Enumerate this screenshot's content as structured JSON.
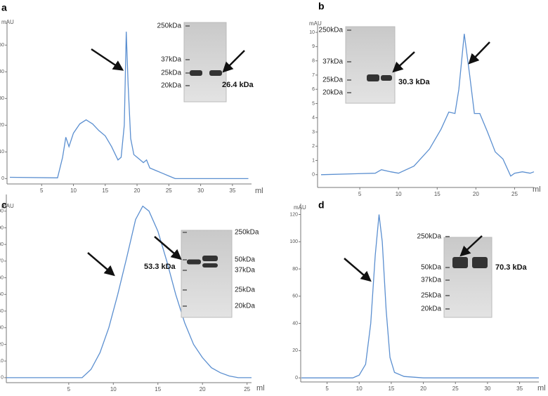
{
  "chart_data": [
    {
      "type": "line",
      "panel_label": "a",
      "y_label": "mAU",
      "x_label": "ml",
      "color": "#5b8fd0",
      "xlim": [
        0,
        38
      ],
      "ylim": [
        -2,
        59
      ],
      "xticks": [
        5,
        10,
        15,
        20,
        25,
        30,
        35
      ],
      "yticks": [
        0,
        10,
        20,
        30,
        40,
        50
      ],
      "x": [
        0,
        7.5,
        8.3,
        8.8,
        9.3,
        10,
        11,
        12,
        13,
        14,
        15,
        16,
        17,
        17.5,
        18,
        18.3,
        18.6,
        19,
        19.5,
        20,
        20.5,
        21,
        21.5,
        22,
        23,
        24,
        25,
        26,
        30,
        37.5
      ],
      "values": [
        0.5,
        0.3,
        8,
        15.5,
        12,
        17,
        20.5,
        22,
        20.5,
        18,
        16,
        12,
        7,
        8,
        20,
        55,
        35,
        15,
        9,
        8,
        7,
        6,
        7,
        4,
        3,
        2,
        1,
        0,
        0,
        0
      ],
      "gel": {
        "markers": [
          "250kDa",
          "37kDa",
          "25kDa",
          "20kDa"
        ],
        "band_label": "26.4 kDa"
      }
    },
    {
      "type": "line",
      "panel_label": "b",
      "y_label": "mAU",
      "x_label": "ml",
      "color": "#5b8fd0",
      "xlim": [
        0,
        27.5
      ],
      "ylim": [
        -0.9,
        10.5
      ],
      "xticks": [
        5,
        10,
        15,
        20,
        25
      ],
      "yticks": [
        0,
        1,
        2,
        3,
        4,
        5,
        6,
        7,
        8,
        9,
        10
      ],
      "x": [
        0,
        7,
        7.8,
        9,
        10,
        12,
        14,
        15.5,
        16.5,
        17.3,
        17.8,
        18.5,
        19.2,
        19.8,
        20.5,
        21.5,
        22.5,
        23.5,
        24.5,
        25,
        26,
        27,
        27.5
      ],
      "values": [
        0,
        0.1,
        0.35,
        0.2,
        0.1,
        0.6,
        1.8,
        3.2,
        4.4,
        4.3,
        6,
        9.9,
        7,
        4.3,
        4.3,
        3,
        1.6,
        1.1,
        -0.1,
        0.1,
        0.2,
        0.1,
        0.2
      ],
      "gel": {
        "markers": [
          "250kDa",
          "37kDa",
          "25kDa",
          "20kDa"
        ],
        "band_label": "30.3 kDa"
      }
    },
    {
      "type": "line",
      "panel_label": "c",
      "y_label": "mAU",
      "x_label": "ml",
      "color": "#5b8fd0",
      "xlim": [
        -2,
        25.5
      ],
      "ylim": [
        -3,
        110
      ],
      "xticks": [
        5,
        10,
        15,
        20,
        25
      ],
      "yticks": [
        0,
        10,
        20,
        30,
        40,
        50,
        60,
        70,
        80,
        90,
        100
      ],
      "x": [
        -2,
        6.5,
        7.5,
        8.5,
        9.5,
        10.5,
        11.5,
        12.5,
        13.3,
        14,
        15,
        16,
        17,
        18,
        19,
        20,
        21,
        22,
        23,
        24,
        25.5
      ],
      "values": [
        0,
        0,
        5,
        15,
        30,
        50,
        72,
        95,
        103,
        100,
        88,
        70,
        50,
        33,
        20,
        12,
        6,
        3,
        1,
        0,
        0
      ],
      "gel": {
        "markers": [
          "250kDa",
          "50kDa",
          "37kDa",
          "25kDa",
          "20kDa"
        ],
        "band_label": "53.3 kDa"
      }
    },
    {
      "type": "line",
      "panel_label": "d",
      "y_label": "mAU",
      "x_label": "ml",
      "color": "#5b8fd0",
      "xlim": [
        1,
        38
      ],
      "ylim": [
        -3,
        128
      ],
      "xticks": [
        5,
        10,
        15,
        20,
        25,
        30,
        35
      ],
      "yticks": [
        0,
        20,
        40,
        60,
        80,
        100,
        120
      ],
      "x": [
        1,
        9,
        10,
        11,
        11.8,
        12.5,
        13.1,
        13.6,
        14.2,
        14.8,
        15.5,
        17,
        20,
        38
      ],
      "values": [
        0,
        0,
        2,
        10,
        40,
        90,
        120,
        100,
        50,
        15,
        4,
        1,
        0,
        0
      ],
      "gel": {
        "markers": [
          "250kDa",
          "50kDa",
          "37kDa",
          "25kDa",
          "20kDa"
        ],
        "band_label": "70.3 kDa"
      }
    }
  ]
}
